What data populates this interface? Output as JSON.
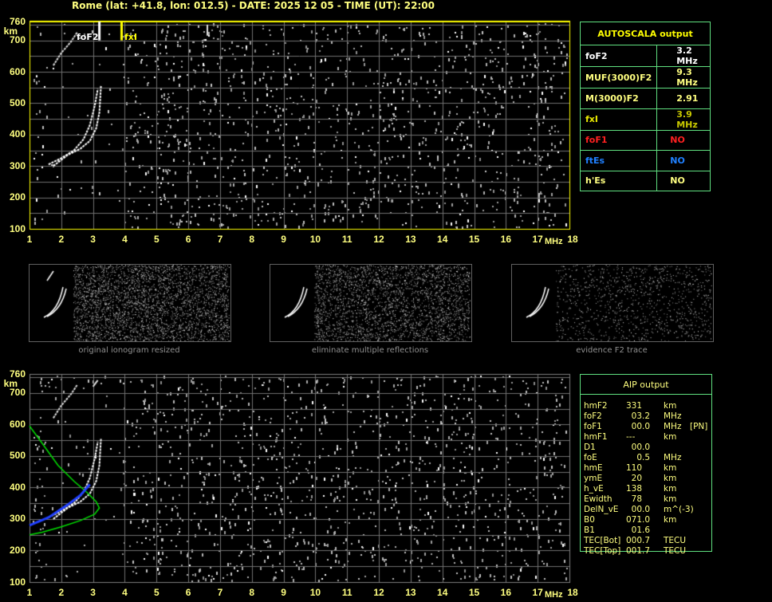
{
  "header": {
    "title": "Rome (lat: +41.8, lon: 012.5) - DATE: 2025 12 05 - TIME (UT): 22:00"
  },
  "ionogram": {
    "y_unit": "km",
    "x_unit": "MHz",
    "y_ticks": [
      "760",
      "700",
      "600",
      "500",
      "400",
      "300",
      "200",
      "100"
    ],
    "x_ticks": [
      "1",
      "2",
      "3",
      "4",
      "5",
      "6",
      "7",
      "8",
      "9",
      "10",
      "11",
      "12",
      "13",
      "14",
      "15",
      "16",
      "17",
      "18"
    ],
    "y_range": [
      100,
      760
    ],
    "x_range": [
      1,
      18
    ],
    "labels": {
      "fof2": "foF2",
      "fxi": "fxI"
    },
    "colors": {
      "axis": "#ffff00",
      "grid": "#707070",
      "trace": "#ffffff",
      "profile": "#00e000",
      "aip_trace": "#2040ff"
    }
  },
  "autoscala": {
    "title": "AUTOSCALA output",
    "rows": [
      {
        "name": "foF2",
        "value": "3.2 MHz",
        "name_color": "#ffffff",
        "value_color": "#ffffff"
      },
      {
        "name": "MUF(3000)F2",
        "value": "9.3 MHz",
        "name_color": "#ffff80",
        "value_color": "#ffff80"
      },
      {
        "name": "M(3000)F2",
        "value": "2.91",
        "name_color": "#ffff80",
        "value_color": "#ffff80"
      },
      {
        "name": "fxI",
        "value": "3.9 MHz",
        "name_color": "#e8e800",
        "value_color": "#c8c800"
      },
      {
        "name": "foF1",
        "value": "NO",
        "name_color": "#ff2020",
        "value_color": "#ff2020"
      },
      {
        "name": "ftEs",
        "value": "NO",
        "name_color": "#2080ff",
        "value_color": "#2080ff"
      },
      {
        "name": "h'Es",
        "value": "NO",
        "name_color": "#ffff80",
        "value_color": "#ffff80"
      }
    ]
  },
  "thumbnails": [
    {
      "caption": "original ionogram resized"
    },
    {
      "caption": "eliminate multiple reflections"
    },
    {
      "caption": "evidence F2 trace"
    }
  ],
  "aip": {
    "title": "AIP output",
    "rows": [
      {
        "name": "hmF2",
        "value": "331",
        "unit": "km",
        "extra": ""
      },
      {
        "name": "foF2",
        "value": "  03.2",
        "unit": "MHz",
        "extra": ""
      },
      {
        "name": "foF1",
        "value": "  00.0",
        "unit": "MHz",
        "extra": "[PN]"
      },
      {
        "name": "hmF1",
        "value": "---",
        "unit": "km",
        "extra": ""
      },
      {
        "name": "D1",
        "value": "  00.0",
        "unit": "",
        "extra": ""
      },
      {
        "name": "foE",
        "value": "    0.5",
        "unit": "MHz",
        "extra": ""
      },
      {
        "name": "hmE",
        "value": "110",
        "unit": "km",
        "extra": ""
      },
      {
        "name": "ymE",
        "value": "  20",
        "unit": "km",
        "extra": ""
      },
      {
        "name": "h_vE",
        "value": "138",
        "unit": "km",
        "extra": ""
      },
      {
        "name": "Ewidth",
        "value": "  78",
        "unit": "km",
        "extra": ""
      },
      {
        "name": "DelN_vE",
        "value": "  00.0",
        "unit": "m^(-3)",
        "extra": ""
      },
      {
        "name": "B0",
        "value": "071.0",
        "unit": "km",
        "extra": ""
      },
      {
        "name": "B1",
        "value": "  01.6",
        "unit": "",
        "extra": ""
      },
      {
        "name": "TEC[Bot]",
        "value": "000.7",
        "unit": "TECU",
        "extra": ""
      },
      {
        "name": "TEC[Top]",
        "value": "001.7",
        "unit": "TECU",
        "extra": ""
      }
    ]
  }
}
